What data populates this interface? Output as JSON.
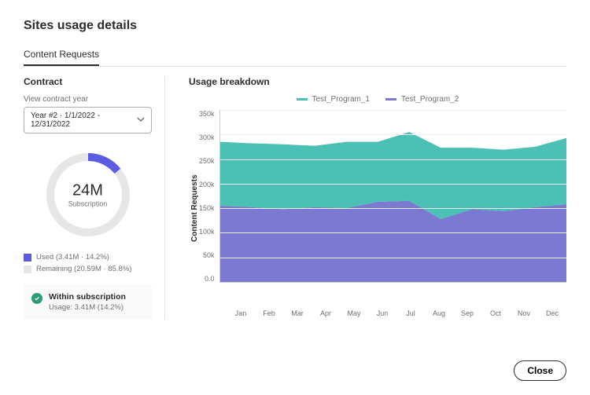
{
  "title": "Sites usage details",
  "tab": "Content Requests",
  "contract": {
    "heading": "Contract",
    "select_label": "View contract year",
    "select_value": "Year #2  ·  1/1/2022 - 12/31/2022",
    "donut": {
      "value": "24M",
      "sub": "Subscription",
      "used_pct": 14.2,
      "used_color": "#5c5ce0",
      "remaining_color": "#e6e6e6"
    },
    "legend": {
      "used_label": "Used (3.41M · 14.2%)",
      "used_color": "#5c5ce0",
      "remaining_label": "Remaining (20.59M · 85.8%)",
      "remaining_color": "#e6e6e6"
    },
    "status": {
      "title": "Within subscription",
      "sub": "Usage: 3.41M (14.2%)",
      "icon_color": "#2d9d78"
    }
  },
  "breakdown": {
    "heading": "Usage breakdown",
    "y_axis_title": "Content Requests",
    "series": [
      {
        "name": "Test_Program_1",
        "color": "#4bc0b5"
      },
      {
        "name": "Test_Program_2",
        "color": "#7b79d1"
      }
    ],
    "months": [
      "Jan",
      "Feb",
      "Mar",
      "Apr",
      "May",
      "Jun",
      "Jul",
      "Aug",
      "Sep",
      "Oct",
      "Nov",
      "Dec"
    ],
    "y_ticks": [
      "350k",
      "300k",
      "250k",
      "200k",
      "150k",
      "100k",
      "50k",
      "0.0"
    ],
    "y_max": 350,
    "series2_values": [
      155,
      152,
      148,
      152,
      150,
      163,
      165,
      128,
      148,
      144,
      152,
      158
    ],
    "series1_values": [
      130,
      130,
      132,
      125,
      135,
      122,
      140,
      145,
      125,
      125,
      123,
      135
    ],
    "colors": {
      "grid": "#eeeeee",
      "axis": "#cccccc"
    }
  },
  "close": "Close"
}
